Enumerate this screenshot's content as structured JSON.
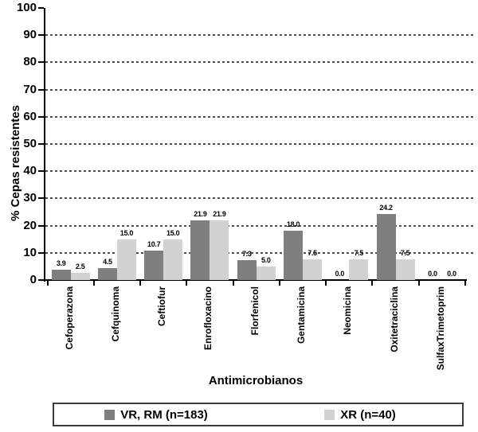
{
  "chart_data": {
    "type": "bar",
    "title": "",
    "xlabel": "Antimicrobianos",
    "ylabel": "% Cepas resistentes",
    "ylim": [
      0,
      100
    ],
    "ytick_step": 10,
    "yticks": [
      0,
      10,
      20,
      30,
      40,
      50,
      60,
      70,
      80,
      90,
      100
    ],
    "grid": "horizontal-dashed",
    "legend_position": "bottom-boxed",
    "value_labels": "one-decimal-above-bars",
    "categories": [
      "Cefoperazona",
      "Cefquinoma",
      "Ceftiofur",
      "Enrofloxacino",
      "Florfenicol",
      "Gentamicina",
      "Neomicina",
      "Oxitetraciclina",
      "SulfaxTrimetoprim"
    ],
    "series": [
      {
        "name": "VR, RM (n=183)",
        "color": "#7f7f7f",
        "values": [
          3.9,
          4.5,
          10.7,
          21.9,
          7.3,
          18.0,
          0.0,
          24.2,
          0.0
        ]
      },
      {
        "name": "XR (n=40)",
        "color": "#d2d2d2",
        "values": [
          2.5,
          15.0,
          15.0,
          21.9,
          5.0,
          7.5,
          7.5,
          7.5,
          0.0
        ]
      }
    ],
    "colors": {
      "axis": "#000000",
      "gridline": "#4d4d4d",
      "text": "#000000",
      "legend_border": "#3d3d3d",
      "background": "#ffffff"
    }
  }
}
